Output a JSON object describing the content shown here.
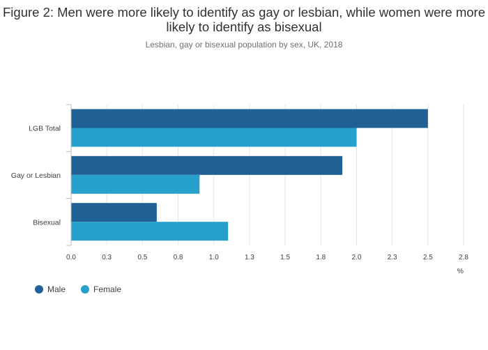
{
  "title": "Figure 2: Men were more likely to identify as gay or lesbian, while women were more likely to identify as bisexual",
  "subtitle": "Lesbian, gay or bisexual population by sex, UK, 2018",
  "colors": {
    "male": "#206095",
    "female": "#27a0cc",
    "grid": "#e6e6e6",
    "axis": "#bbbbbb",
    "text": "#414042"
  },
  "chart_data": {
    "type": "bar",
    "orientation": "horizontal",
    "categories": [
      "LGB Total",
      "Gay or Lesbian",
      "Bisexual"
    ],
    "series": [
      {
        "name": "Male",
        "values": [
          2.5,
          1.9,
          0.6
        ]
      },
      {
        "name": "Female",
        "values": [
          2.0,
          0.9,
          1.1
        ]
      }
    ],
    "xlabel": "%",
    "xlim": [
      0,
      2.75
    ],
    "ticks": [
      "0.0",
      "0.3",
      "0.5",
      "0.8",
      "1.0",
      "1.3",
      "1.5",
      "1.8",
      "2.0",
      "2.3",
      "2.5",
      "2.8"
    ],
    "grid": true,
    "legend_position": "bottom-left"
  }
}
